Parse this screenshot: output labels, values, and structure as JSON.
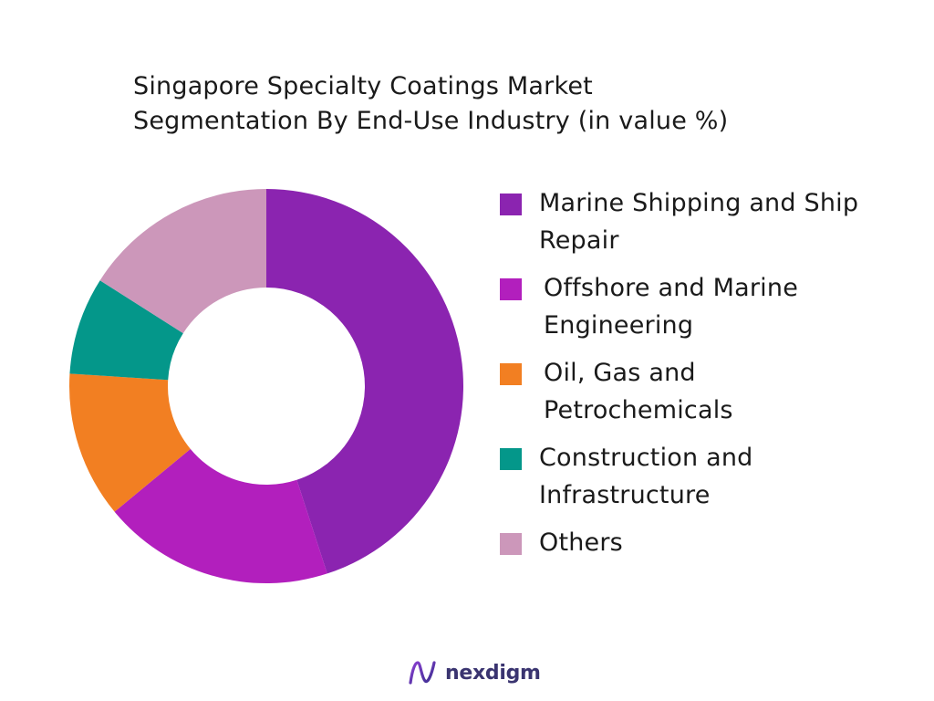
{
  "chart_data": {
    "type": "pie",
    "variant": "donut",
    "title": "Singapore Specialty Coatings Market Segmentation By End-Use Industry  (in value %)",
    "title_lines": [
      "Singapore Specialty Coatings Market",
      "Segmentation By End-Use Industry  (in value %)"
    ],
    "legend_position": "right",
    "start_angle_deg": 0,
    "slices": [
      {
        "label": "Marine Shipping and Ship Repair",
        "value": 45,
        "color": "#8b24b0"
      },
      {
        "label": "Offshore and Marine Engineering",
        "value": 19,
        "color": "#b21fbd"
      },
      {
        "label": "Oil, Gas and Petrochemicals",
        "value": 12,
        "color": "#f27f22"
      },
      {
        "label": "Construction and Infrastructure",
        "value": 8,
        "color": "#04978a"
      },
      {
        "label": "Others",
        "value": 16,
        "color": "#cc97ba"
      }
    ]
  },
  "legend": {
    "items": [
      {
        "lines": [
          "Marine Shipping and Ship",
          "Repair"
        ],
        "color": "#8b24b0"
      },
      {
        "lines": [
          "Offshore and Marine",
          "Engineering"
        ],
        "color": "#b21fbd"
      },
      {
        "lines": [
          "Oil, Gas and",
          "Petrochemicals"
        ],
        "color": "#f27f22"
      },
      {
        "lines": [
          "Construction and",
          "Infrastructure"
        ],
        "color": "#04978a"
      },
      {
        "lines": [
          "Others"
        ],
        "color": "#cc97ba"
      }
    ]
  },
  "brand": {
    "name": "nexdigm",
    "icon": "nexdigm-logo-icon"
  }
}
